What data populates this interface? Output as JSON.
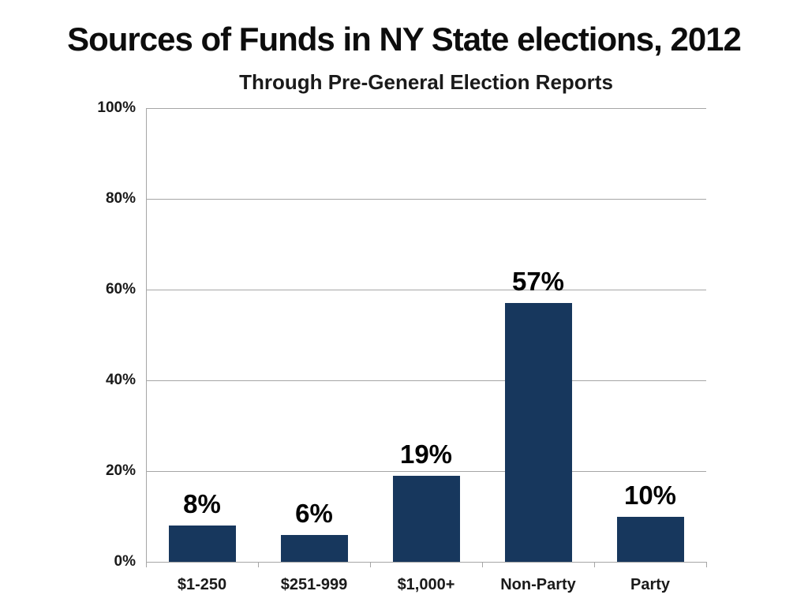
{
  "chart_data": {
    "type": "bar",
    "title": "Sources of Funds in NY State elections, 2012",
    "subtitle": "Through Pre-General Election Reports",
    "categories": [
      "$1-250",
      "$251-999",
      "$1,000+",
      "Non-Party",
      "Party"
    ],
    "values": [
      8,
      6,
      19,
      57,
      10
    ],
    "value_labels": [
      "8%",
      "6%",
      "19%",
      "57%",
      "10%"
    ],
    "y_ticks": [
      0,
      20,
      40,
      60,
      80,
      100
    ],
    "y_tick_labels": [
      "0%",
      "20%",
      "40%",
      "60%",
      "80%",
      "100%"
    ],
    "ylim": [
      0,
      100
    ],
    "xlabel": "",
    "ylabel": "",
    "grid": true,
    "legend": false,
    "bar_color": "#17375d",
    "gridline_color": "#a6a6a6",
    "label_color": "#000000",
    "background_color": "#ffffff"
  }
}
